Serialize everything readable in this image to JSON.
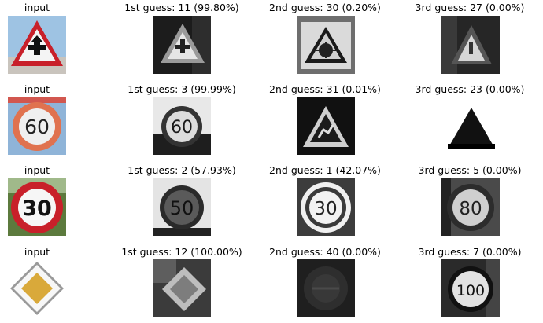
{
  "rows": [
    {
      "input_label": "input",
      "guesses": [
        "1st guess: 11 (99.80%)",
        "2nd guess: 30 (0.20%)",
        "3rd guess: 27 (0.00%)"
      ]
    },
    {
      "input_label": "input",
      "guesses": [
        "1st guess: 3 (99.99%)",
        "2nd guess: 31 (0.01%)",
        "3rd guess: 23 (0.00%)"
      ]
    },
    {
      "input_label": "input",
      "guesses": [
        "1st guess: 2 (57.93%)",
        "2nd guess: 1 (42.07%)",
        "3rd guess: 5 (0.00%)"
      ]
    },
    {
      "input_label": "input",
      "guesses": [
        "1st guess: 12 (100.00%)",
        "2nd guess: 40 (0.00%)",
        "3rd guess: 7 (0.00%)"
      ]
    }
  ],
  "sign_text": {
    "row2_input": "60",
    "row2_guess1": "60",
    "row3_input": "30",
    "row3_guess1": "50",
    "row3_guess2": "30",
    "row3_guess3": "80",
    "row4_guess3": "100"
  },
  "colors": {
    "sign_red": "#c8202a",
    "sign_yellow": "#d9a93a",
    "sky_blue": "#8fb4d8"
  }
}
